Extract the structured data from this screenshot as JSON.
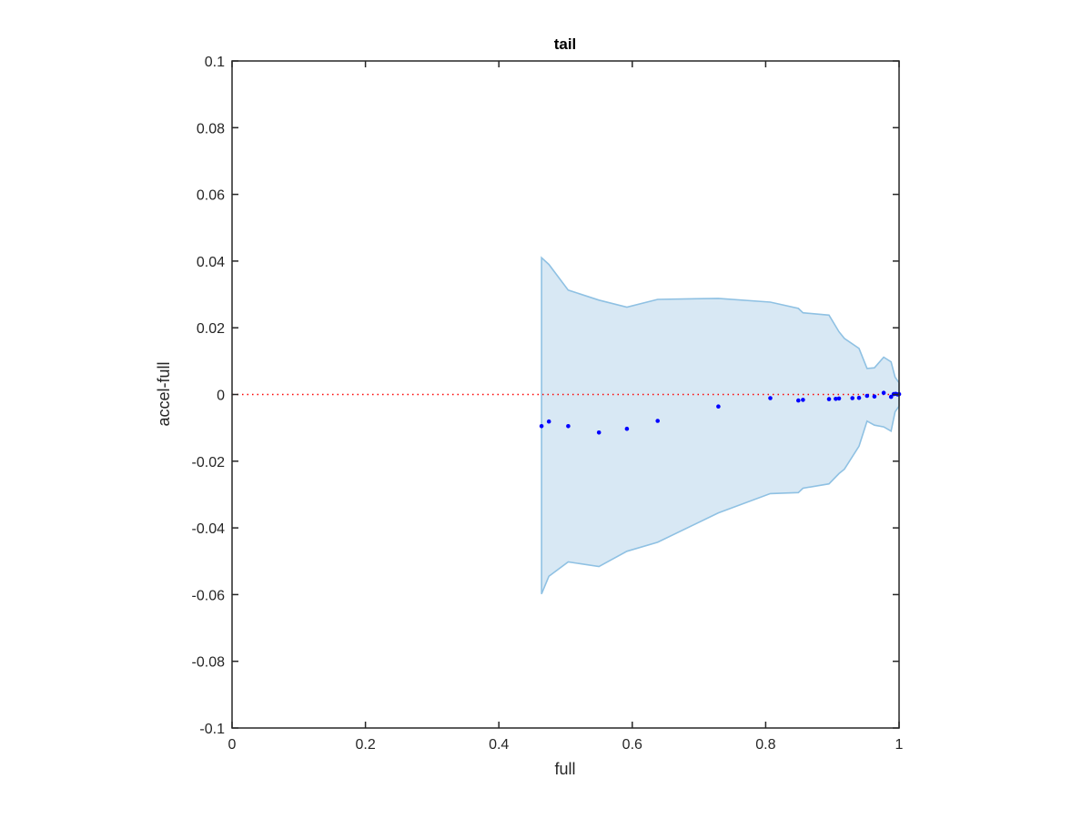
{
  "chart_data": {
    "type": "scatter",
    "title": "tail",
    "xlabel": "full",
    "ylabel": "accel-full",
    "xlim": [
      0,
      1
    ],
    "ylim": [
      -0.1,
      0.1
    ],
    "xticks": [
      0,
      0.2,
      0.4,
      0.6,
      0.8,
      1
    ],
    "xtick_labels": [
      "0",
      "0.2",
      "0.4",
      "0.6",
      "0.8",
      "1"
    ],
    "yticks": [
      0.1,
      0.08,
      0.06,
      0.04,
      0.02,
      0,
      -0.02,
      -0.04,
      -0.06,
      -0.08,
      -0.1
    ],
    "ytick_labels": [
      "0.1",
      "0.08",
      "0.06",
      "0.04",
      "0.02",
      "0",
      "-0.02",
      "-0.04",
      "-0.06",
      "-0.08",
      "-0.1"
    ],
    "grid": false,
    "reference_line": {
      "y": 0,
      "color": "#ff0000",
      "style": "dotted"
    },
    "band": {
      "fill_color": "#d8e8f4",
      "edge_color": "#8fc1e3",
      "upper": [
        [
          0.464,
          0.041
        ],
        [
          0.475,
          0.039
        ],
        [
          0.504,
          0.0313
        ],
        [
          0.55,
          0.0283
        ],
        [
          0.592,
          0.0262
        ],
        [
          0.638,
          0.0285
        ],
        [
          0.729,
          0.0288
        ],
        [
          0.807,
          0.0277
        ],
        [
          0.849,
          0.0258
        ],
        [
          0.856,
          0.0245
        ],
        [
          0.895,
          0.0238
        ],
        [
          0.91,
          0.0188
        ],
        [
          0.918,
          0.0168
        ],
        [
          0.94,
          0.0138
        ],
        [
          0.952,
          0.0078
        ],
        [
          0.963,
          0.008
        ],
        [
          0.977,
          0.0112
        ],
        [
          0.988,
          0.0098
        ],
        [
          0.994,
          0.0052
        ],
        [
          1.0,
          0.0035
        ]
      ],
      "lower": [
        [
          0.464,
          -0.0598
        ],
        [
          0.475,
          -0.0545
        ],
        [
          0.504,
          -0.0502
        ],
        [
          0.55,
          -0.0516
        ],
        [
          0.592,
          -0.047
        ],
        [
          0.638,
          -0.0443
        ],
        [
          0.729,
          -0.0355
        ],
        [
          0.807,
          -0.0297
        ],
        [
          0.849,
          -0.0294
        ],
        [
          0.856,
          -0.0281
        ],
        [
          0.895,
          -0.0268
        ],
        [
          0.91,
          -0.0237
        ],
        [
          0.918,
          -0.0224
        ],
        [
          0.94,
          -0.0155
        ],
        [
          0.952,
          -0.008
        ],
        [
          0.963,
          -0.0092
        ],
        [
          0.977,
          -0.0097
        ],
        [
          0.988,
          -0.011
        ],
        [
          0.994,
          -0.0052
        ],
        [
          1.0,
          -0.0035
        ]
      ]
    },
    "series": [
      {
        "color": "#0000ff",
        "points": [
          [
            0.464,
            -0.0095
          ],
          [
            0.475,
            -0.0081
          ],
          [
            0.504,
            -0.0095
          ],
          [
            0.55,
            -0.0114
          ],
          [
            0.592,
            -0.0103
          ],
          [
            0.638,
            -0.0079
          ],
          [
            0.729,
            -0.0036
          ],
          [
            0.807,
            -0.0011
          ],
          [
            0.849,
            -0.0018
          ],
          [
            0.856,
            -0.0016
          ],
          [
            0.895,
            -0.0014
          ],
          [
            0.905,
            -0.0013
          ],
          [
            0.91,
            -0.0012
          ],
          [
            0.93,
            -0.0011
          ],
          [
            0.94,
            -0.001
          ],
          [
            0.952,
            -0.0004
          ],
          [
            0.963,
            -0.0006
          ],
          [
            0.977,
            0.0005
          ],
          [
            0.988,
            -0.0007
          ],
          [
            0.992,
            0.0001
          ],
          [
            0.995,
            0.0002
          ],
          [
            0.998,
            0.0
          ],
          [
            1.0,
            0.0001
          ]
        ]
      }
    ]
  }
}
